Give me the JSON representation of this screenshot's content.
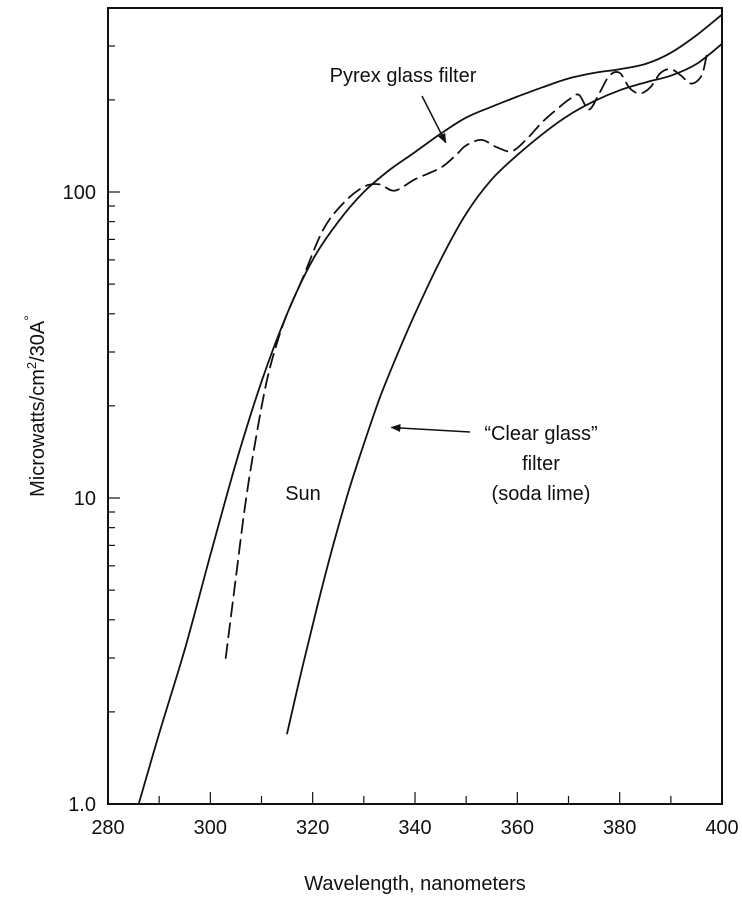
{
  "chart_data": {
    "type": "line",
    "title": "",
    "xlabel": "Wavelength, nanometers",
    "ylabel": "Microwatts/cm²/30A°",
    "ylabel_parts": {
      "prefix": "Microwatts/cm",
      "sup": "2",
      "mid": "/30A",
      "ring": "°"
    },
    "xlim": [
      280,
      400
    ],
    "ylim": [
      1.0,
      400
    ],
    "yscale": "log",
    "grid": false,
    "legend": "none",
    "x_ticks": [
      "280",
      "300",
      "320",
      "340",
      "360",
      "380",
      "400"
    ],
    "y_tick_labels": [
      "1.0",
      "10",
      "100"
    ],
    "series": [
      {
        "style": "solid",
        "x": [
          286,
          290,
          295,
          300,
          305,
          310,
          315,
          320,
          325,
          330,
          335,
          340,
          345,
          350,
          355,
          360,
          365,
          370,
          375,
          380,
          385,
          390,
          395,
          400
        ],
        "y": [
          1.0,
          1.7,
          3.2,
          6.5,
          13,
          24,
          40,
          60,
          80,
          100,
          118,
          135,
          155,
          175,
          190,
          205,
          220,
          235,
          245,
          252,
          262,
          285,
          325,
          380
        ]
      },
      {
        "style": "dashed",
        "x": [
          303,
          305,
          307,
          309,
          311,
          313,
          315,
          318,
          322,
          326,
          330,
          333,
          336,
          340,
          345,
          348,
          350,
          353,
          356,
          359,
          362,
          365,
          368,
          370,
          372,
          374,
          376,
          378,
          380,
          382,
          384,
          386,
          388,
          390,
          392,
          394,
          396,
          397
        ],
        "y": [
          3.0,
          5.5,
          10,
          16,
          24,
          32,
          40,
          52,
          75,
          92,
          104,
          106,
          101,
          110,
          120,
          132,
          142,
          148,
          140,
          136,
          150,
          170,
          188,
          200,
          208,
          186,
          210,
          240,
          245,
          218,
          210,
          220,
          245,
          252,
          240,
          226,
          240,
          280
        ]
      },
      {
        "style": "solid",
        "x": [
          315,
          318,
          321,
          324,
          327,
          330,
          333,
          336,
          340,
          345,
          350,
          355,
          360,
          365,
          370,
          375,
          380,
          385,
          390,
          395,
          400
        ],
        "y": [
          1.7,
          2.8,
          4.5,
          7,
          10.5,
          15,
          21,
          28,
          40,
          60,
          85,
          110,
          132,
          155,
          178,
          198,
          215,
          228,
          240,
          262,
          305
        ]
      }
    ],
    "annotations": [
      {
        "text": "Pyrex glass filter",
        "arrow_x": 346,
        "arrow_y": 145
      },
      {
        "text": "Sun"
      },
      {
        "lines": [
          "“Clear glass”",
          "filter",
          "(soda lime)"
        ],
        "arrow_x": 335,
        "arrow_y": 17
      }
    ]
  }
}
